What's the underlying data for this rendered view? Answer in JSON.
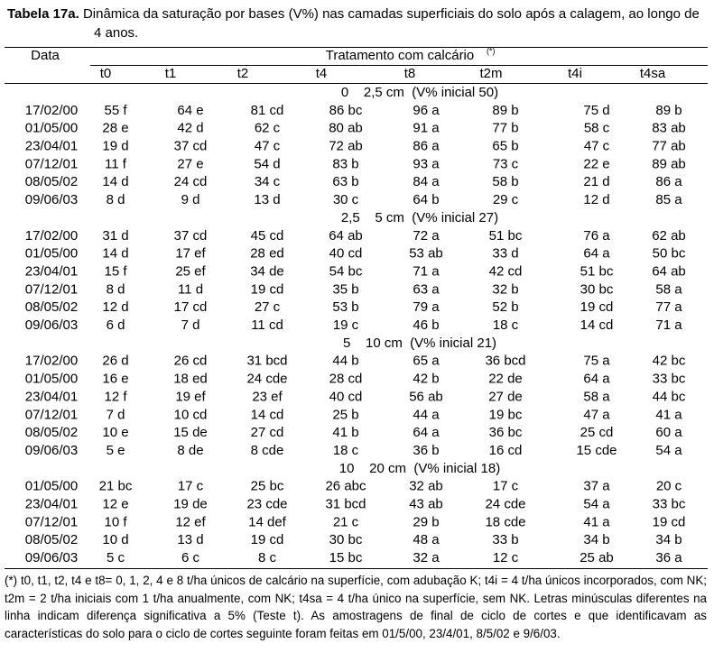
{
  "title": {
    "label": "Tabela 17a.",
    "text": "Dinâmica da saturação por bases (V%) nas camadas superficiais do solo após a calagem, ao longo de 4 anos."
  },
  "header": {
    "date": "Data",
    "treatment": "Tratamento com calcário",
    "treatment_note": "(*)",
    "columns": [
      "t0",
      "t1",
      "t2",
      "t4",
      "t8",
      "t2m",
      "t4i",
      "t4sa"
    ]
  },
  "sections": [
    {
      "label": "0    2,5 cm  (V% inicial 50)",
      "rows": [
        [
          "17/02/00",
          "55 f",
          "64 e",
          "81 cd",
          "86 bc",
          "96 a",
          "89 b",
          "75 d",
          "89 b"
        ],
        [
          "01/05/00",
          "28 e",
          "42 d",
          "62 c",
          "80 ab",
          "91 a",
          "77 b",
          "58 c",
          "83 ab"
        ],
        [
          "23/04/01",
          "19 d",
          "37 cd",
          "47 c",
          "72 ab",
          "86 a",
          "65 b",
          "47 c",
          "77 ab"
        ],
        [
          "07/12/01",
          "11 f",
          "27 e",
          "54 d",
          "83 b",
          "93 a",
          "73 c",
          "22 e",
          "89 ab"
        ],
        [
          "08/05/02",
          "14 d",
          "24 cd",
          "34 c",
          "63 b",
          "84 a",
          "58 b",
          "21 d",
          "86 a"
        ],
        [
          "09/06/03",
          "8 d",
          "9 d",
          "13 d",
          "30 c",
          "64 b",
          "29 c",
          "12 d",
          "85 a"
        ]
      ]
    },
    {
      "label": "2,5    5 cm  (V% inicial 27)",
      "rows": [
        [
          "17/02/00",
          "31 d",
          "37 cd",
          "45 cd",
          "64 ab",
          "72 a",
          "51 bc",
          "76 a",
          "62 ab"
        ],
        [
          "01/05/00",
          "14 d",
          "17 ef",
          "28 ed",
          "40 cd",
          "53 ab",
          "33 d",
          "64 a",
          "50 bc"
        ],
        [
          "23/04/01",
          "15 f",
          "25 ef",
          "34 de",
          "54 bc",
          "71 a",
          "42 cd",
          "51 bc",
          "64 ab"
        ],
        [
          "07/12/01",
          "8 d",
          "11 d",
          "19 cd",
          "35 b",
          "63 a",
          "32 b",
          "30 bc",
          "58 a"
        ],
        [
          "08/05/02",
          "12 d",
          "17 cd",
          "27 c",
          "53 b",
          "79 a",
          "52 b",
          "19 cd",
          "77 a"
        ],
        [
          "09/06/03",
          "6 d",
          "7 d",
          "11 cd",
          "19 c",
          "46 b",
          "18 c",
          "14 cd",
          "71 a"
        ]
      ]
    },
    {
      "label": "5    10 cm  (V% inicial 21)",
      "rows": [
        [
          "17/02/00",
          "26 d",
          "26 cd",
          "31 bcd",
          "44 b",
          "65 a",
          "36 bcd",
          "75 a",
          "42 bc"
        ],
        [
          "01/05/00",
          "16 e",
          "18 ed",
          "24 cde",
          "28 cd",
          "42 b",
          "22 de",
          "64 a",
          "33 bc"
        ],
        [
          "23/04/01",
          "12 f",
          "19 ef",
          "23 ef",
          "40 cd",
          "56 ab",
          "27 de",
          "58 a",
          "44 bc"
        ],
        [
          "07/12/01",
          "7 d",
          "10 cd",
          "14 cd",
          "25 b",
          "44 a",
          "19 bc",
          "47 a",
          "41 a"
        ],
        [
          "08/05/02",
          "10 e",
          "15 de",
          "27 cd",
          "41 b",
          "64 a",
          "36 bc",
          "25 cd",
          "60 a"
        ],
        [
          "09/06/03",
          "5 e",
          "8 de",
          "8 cde",
          "18 c",
          "36 b",
          "16 cd",
          "15 cde",
          "54 a"
        ]
      ]
    },
    {
      "label": "10    20 cm  (V% inicial 18)",
      "rows": [
        [
          "01/05/00",
          "21 bc",
          "17 c",
          "25 bc",
          "26 abc",
          "32 ab",
          "17 c",
          "37 a",
          "20 c"
        ],
        [
          "23/04/01",
          "12 e",
          "19 de",
          "23 cde",
          "31 bcd",
          "43 ab",
          "24 cde",
          "54 a",
          "33 bc"
        ],
        [
          "07/12/01",
          "10 f",
          "12 ef",
          "14 def",
          "21 c",
          "29 b",
          "18 cde",
          "41 a",
          "19 cd"
        ],
        [
          "08/05/02",
          "10 d",
          "13 d",
          "19 cd",
          "30 bc",
          "48 a",
          "33 b",
          "34 b",
          "34 b"
        ],
        [
          "09/06/03",
          "5 c",
          "6 c",
          "8 c",
          "15 bc",
          "32 a",
          "12 c",
          "25 ab",
          "36 a"
        ]
      ]
    }
  ],
  "footnote": "(*) t0, t1, t2, t4 e t8= 0, 1, 2, 4 e 8 t/ha únicos de calcário na superfície, com adubação K; t4i = 4 t/ha únicos incorporados, com NK; t2m = 2 t/ha iniciais com 1 t/ha anualmente, com NK; t4sa = 4 t/ha único na superfície, sem NK. Letras minúsculas diferentes na linha indicam diferença significativa a 5% (Teste t). As amostragens de final de ciclo de cortes e que identificavam as características do solo para o ciclo de cortes seguinte foram feitas em 01/5/00, 23/4/01, 8/5/02 e 9/6/03."
}
